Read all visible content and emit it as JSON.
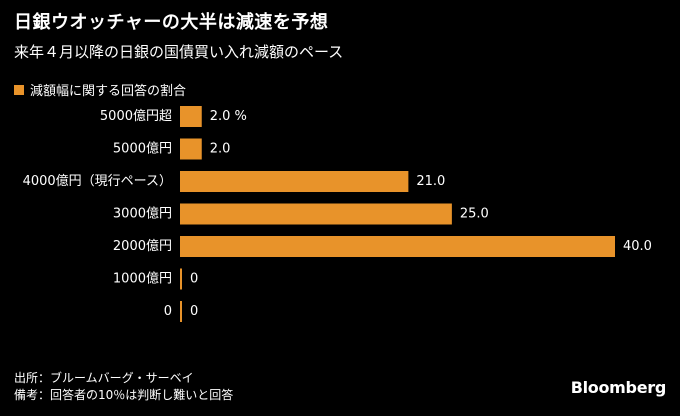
{
  "title": "日銀ウオッチャーの大半は減速を予想",
  "subtitle": "来年４月以降の日銀の国債買い入れ減額のペース",
  "legend": {
    "label": "減額幅に関する回答の割合",
    "color": "#e8932a"
  },
  "chart_data": {
    "type": "bar",
    "orientation": "horizontal",
    "title": "日銀ウオッチャーの大半は減速を予想",
    "subtitle": "来年４月以降の日銀の国債買い入れ減額のペース",
    "categories": [
      "5000億円超",
      "5000億円",
      "4000億円（現行ペース）",
      "3000億円",
      "2000億円",
      "1000億円",
      "0"
    ],
    "value_labels": [
      "2.0 %",
      "2.0",
      "21.0",
      "25.0",
      "40.0",
      "0",
      "0"
    ],
    "series": [
      {
        "name": "減額幅に関する回答の割合",
        "values": [
          2.0,
          2.0,
          21.0,
          25.0,
          40.0,
          0,
          0
        ]
      }
    ],
    "xlim": [
      0,
      40
    ],
    "grid": false,
    "bar_color": "#e8932a"
  },
  "footer": {
    "source": "出所：ブルームバーグ・サーベイ",
    "note": "備考：回答者の10％は判断し難いと回答",
    "brand": "Bloomberg"
  }
}
